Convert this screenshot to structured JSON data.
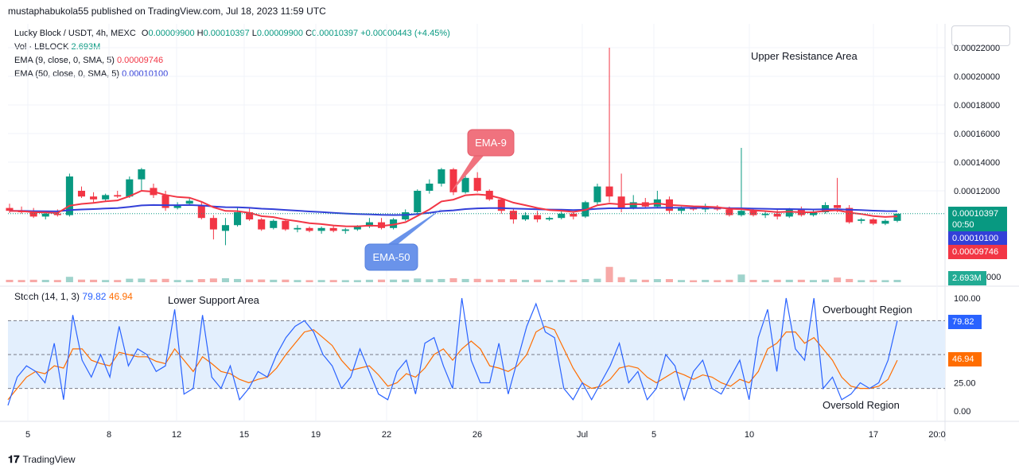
{
  "header": {
    "published": "mustaphabukola55 published on TradingView.com, Jul 18, 2023 11:59 UTC"
  },
  "legend": {
    "symbol": "Lucky Block / USDT, 4h, MEXC",
    "open_label": "O",
    "open": "0.00009900",
    "high_label": "H",
    "high": "0.00010397",
    "low_label": "L",
    "low": "0.00009900",
    "close_label": "C",
    "close": "0.00010397",
    "change": "+0.00000443 (+4.45%)",
    "vol_label": "Vol · LBLOCK",
    "vol_value": "2.693M",
    "ema9_label": "EMA (9, close, 0, SMA, 5)",
    "ema9_value": "0.00009746",
    "ema50_label": "EMA (50, close, 0, SMA, 5)",
    "ema50_value": "0.00010100",
    "stoch_label": "Stoch (14, 1, 3)",
    "stoch_k": "79.82",
    "stoch_d": "46.94"
  },
  "annotations": {
    "upper_resistance": "Upper Resistance Area",
    "lower_support": "Lower Support Area",
    "ema9_callout": "EMA-9",
    "ema50_callout": "EMA-50",
    "overbought": "Overbought Region",
    "oversold": "Oversold Region"
  },
  "price_badges": {
    "last_price": "0.00010397",
    "countdown": "00:50",
    "ema50": "0.00010100",
    "ema9": "0.00009746",
    "volume": "2.693M",
    "stoch_k": "79.82",
    "stoch_d": "46.94"
  },
  "footer": {
    "brand": "TradingView"
  },
  "colors": {
    "up": "#089981",
    "down": "#f23645",
    "ema9": "#f23645",
    "ema50": "#3340d8",
    "stoch_k": "#2962ff",
    "stoch_d": "#ff6d00",
    "stoch_band": "#e3effd",
    "vol_up": "#9fd3cc",
    "vol_down": "#f7a9a7"
  },
  "chart_data": [
    {
      "type": "candlestick",
      "title": "Lucky Block / USDT, 4h, MEXC",
      "x_tick_labels": [
        "5",
        "8",
        "12",
        "15",
        "19",
        "22",
        "26",
        "Jul",
        "5",
        "10",
        "17",
        "20:0"
      ],
      "y_tick_labels": [
        "0.00022000",
        "0.00020000",
        "0.00018000",
        "0.00016000",
        "0.00014000",
        "0.00012000"
      ],
      "ylim": [
        8e-05,
        0.000225
      ],
      "series_ohlc": [
        {
          "o": 0.000108,
          "h": 0.000111,
          "l": 0.0001045,
          "c": 0.000106
        },
        {
          "o": 0.000106,
          "h": 0.000109,
          "l": 0.000104,
          "c": 0.000105
        },
        {
          "o": 0.000105,
          "h": 0.000108,
          "l": 0.000101,
          "c": 0.000102
        },
        {
          "o": 0.000102,
          "h": 0.000106,
          "l": 0.0001,
          "c": 0.000104
        },
        {
          "o": 0.000104,
          "h": 0.000107,
          "l": 0.000102,
          "c": 0.000103
        },
        {
          "o": 0.000103,
          "h": 0.000132,
          "l": 0.000102,
          "c": 0.00013
        },
        {
          "o": 0.00012,
          "h": 0.000123,
          "l": 0.000115,
          "c": 0.000116
        },
        {
          "o": 0.000116,
          "h": 0.000119,
          "l": 0.000112,
          "c": 0.000114
        },
        {
          "o": 0.000114,
          "h": 0.000118,
          "l": 0.000113,
          "c": 0.000117
        },
        {
          "o": 0.000117,
          "h": 0.00012,
          "l": 0.000115,
          "c": 0.000116
        },
        {
          "o": 0.000116,
          "h": 0.00013,
          "l": 0.000115,
          "c": 0.000128
        },
        {
          "o": 0.000128,
          "h": 0.000136,
          "l": 0.00012,
          "c": 0.000135
        },
        {
          "o": 0.000122,
          "h": 0.000125,
          "l": 0.000115,
          "c": 0.000117
        },
        {
          "o": 0.000117,
          "h": 0.00012,
          "l": 0.000106,
          "c": 0.000108
        },
        {
          "o": 0.000108,
          "h": 0.000112,
          "l": 0.000107,
          "c": 0.00011
        },
        {
          "o": 0.000111,
          "h": 0.000115,
          "l": 0.00011,
          "c": 0.000113
        },
        {
          "o": 0.00011,
          "h": 0.000112,
          "l": 0.0001,
          "c": 0.000101
        },
        {
          "o": 0.000101,
          "h": 0.000103,
          "l": 8.6e-05,
          "c": 9.3e-05
        },
        {
          "o": 9.2e-05,
          "h": 0.000101,
          "l": 8.2e-05,
          "c": 9.6e-05
        },
        {
          "o": 9.6e-05,
          "h": 0.000108,
          "l": 9.5e-05,
          "c": 0.000105
        },
        {
          "o": 0.000105,
          "h": 0.000108,
          "l": 9.9e-05,
          "c": 0.0001
        },
        {
          "o": 0.0001,
          "h": 0.000101,
          "l": 9.2e-05,
          "c": 9.3e-05
        },
        {
          "o": 9.4e-05,
          "h": 0.0001,
          "l": 9.3e-05,
          "c": 9.9e-05
        },
        {
          "o": 9.9e-05,
          "h": 0.0001,
          "l": 9.2e-05,
          "c": 9.3e-05
        },
        {
          "o": 9.3e-05,
          "h": 9.6e-05,
          "l": 9.1e-05,
          "c": 9.4e-05
        },
        {
          "o": 9.4e-05,
          "h": 9.5e-05,
          "l": 9.1e-05,
          "c": 9.2e-05
        },
        {
          "o": 9.2e-05,
          "h": 9.5e-05,
          "l": 9e-05,
          "c": 9.4e-05
        },
        {
          "o": 9.4e-05,
          "h": 9.6e-05,
          "l": 9.1e-05,
          "c": 9.2e-05
        },
        {
          "o": 9.2e-05,
          "h": 9.4e-05,
          "l": 9e-05,
          "c": 9.3e-05
        },
        {
          "o": 9.3e-05,
          "h": 9.6e-05,
          "l": 9.2e-05,
          "c": 9.5e-05
        },
        {
          "o": 9.5e-05,
          "h": 0.000101,
          "l": 9.4e-05,
          "c": 9.8e-05
        },
        {
          "o": 9.8e-05,
          "h": 0.000101,
          "l": 9.3e-05,
          "c": 9.4e-05
        },
        {
          "o": 9.4e-05,
          "h": 0.000101,
          "l": 9.3e-05,
          "c": 0.0001
        },
        {
          "o": 0.0001,
          "h": 0.000107,
          "l": 9.9e-05,
          "c": 0.000105
        },
        {
          "o": 0.000105,
          "h": 0.000121,
          "l": 0.000104,
          "c": 0.00012
        },
        {
          "o": 0.00012,
          "h": 0.000128,
          "l": 0.000118,
          "c": 0.000125
        },
        {
          "o": 0.000125,
          "h": 0.000136,
          "l": 0.000123,
          "c": 0.000135
        },
        {
          "o": 0.000135,
          "h": 0.000136,
          "l": 0.000117,
          "c": 0.000119
        },
        {
          "o": 0.000119,
          "h": 0.000131,
          "l": 0.000118,
          "c": 0.000129
        },
        {
          "o": 0.000129,
          "h": 0.000133,
          "l": 0.000119,
          "c": 0.00012
        },
        {
          "o": 0.00012,
          "h": 0.000121,
          "l": 0.000113,
          "c": 0.000114
        },
        {
          "o": 0.000114,
          "h": 0.000115,
          "l": 0.000104,
          "c": 0.000106
        },
        {
          "o": 0.000106,
          "h": 0.000108,
          "l": 9.7e-05,
          "c": 0.0001
        },
        {
          "o": 0.0001,
          "h": 0.000105,
          "l": 9.9e-05,
          "c": 0.000103
        },
        {
          "o": 0.000103,
          "h": 0.000106,
          "l": 9.8e-05,
          "c": 0.0001
        },
        {
          "o": 0.0001,
          "h": 0.000102,
          "l": 9.9e-05,
          "c": 0.000101
        },
        {
          "o": 0.000101,
          "h": 0.000106,
          "l": 0.0001,
          "c": 0.000104
        },
        {
          "o": 0.000104,
          "h": 0.000105,
          "l": 0.0001,
          "c": 0.000102
        },
        {
          "o": 0.000102,
          "h": 0.000113,
          "l": 0.000101,
          "c": 0.000112
        },
        {
          "o": 0.000112,
          "h": 0.000125,
          "l": 0.00011,
          "c": 0.000123
        },
        {
          "o": 0.000123,
          "h": 0.00022,
          "l": 0.000112,
          "c": 0.000116
        },
        {
          "o": 0.000116,
          "h": 0.000132,
          "l": 0.000105,
          "c": 0.000108
        },
        {
          "o": 0.000108,
          "h": 0.000117,
          "l": 0.000107,
          "c": 0.000112
        },
        {
          "o": 0.000112,
          "h": 0.000115,
          "l": 0.000108,
          "c": 0.000109
        },
        {
          "o": 0.000109,
          "h": 0.00012,
          "l": 0.000108,
          "c": 0.000114
        },
        {
          "o": 0.000114,
          "h": 0.000116,
          "l": 0.000104,
          "c": 0.000106
        },
        {
          "o": 0.000106,
          "h": 0.000109,
          "l": 0.000104,
          "c": 0.000108
        },
        {
          "o": 0.000108,
          "h": 0.000109,
          "l": 0.000106,
          "c": 0.000107
        },
        {
          "o": 0.000107,
          "h": 0.000111,
          "l": 0.000105,
          "c": 0.000108
        },
        {
          "o": 0.000108,
          "h": 0.00011,
          "l": 0.000106,
          "c": 0.000107
        },
        {
          "o": 0.000107,
          "h": 0.000109,
          "l": 0.000102,
          "c": 0.000103
        },
        {
          "o": 0.000103,
          "h": 0.00015,
          "l": 0.000102,
          "c": 0.000106
        },
        {
          "o": 0.000106,
          "h": 0.000108,
          "l": 0.000102,
          "c": 0.000103
        },
        {
          "o": 0.000103,
          "h": 0.000106,
          "l": 0.000101,
          "c": 0.000104
        },
        {
          "o": 0.000104,
          "h": 0.000107,
          "l": 0.0001,
          "c": 0.000102
        },
        {
          "o": 0.000102,
          "h": 0.000108,
          "l": 0.000101,
          "c": 0.000107
        },
        {
          "o": 0.000107,
          "h": 0.000109,
          "l": 0.000102,
          "c": 0.000103
        },
        {
          "o": 0.000103,
          "h": 0.000107,
          "l": 0.000102,
          "c": 0.000105
        },
        {
          "o": 0.000105,
          "h": 0.000112,
          "l": 0.000104,
          "c": 0.00011
        },
        {
          "o": 0.00011,
          "h": 0.000129,
          "l": 0.000105,
          "c": 0.000108
        },
        {
          "o": 0.000108,
          "h": 0.00011,
          "l": 9.7e-05,
          "c": 9.8e-05
        },
        {
          "o": 9.9e-05,
          "h": 0.000101,
          "l": 9.7e-05,
          "c": 0.0001
        },
        {
          "o": 0.0001,
          "h": 0.000101,
          "l": 9.6e-05,
          "c": 9.7e-05
        },
        {
          "o": 9.7e-05,
          "h": 0.0001,
          "l": 9.6e-05,
          "c": 9.9e-05
        },
        {
          "o": 9.9e-05,
          "h": 0.000104,
          "l": 9.8e-05,
          "c": 0.000104
        }
      ]
    },
    {
      "type": "area",
      "title": "Vol · LBLOCK",
      "last_value": "2.693M"
    },
    {
      "type": "line",
      "title": "Stoch (14, 1, 3)",
      "y_tick_labels": [
        "100.00",
        "25.00",
        "0.00"
      ],
      "ylim": [
        0,
        100
      ],
      "levels": [
        80,
        50,
        20
      ],
      "series": [
        {
          "name": "79.82",
          "values": [
            5,
            30,
            40,
            35,
            25,
            60,
            10,
            85,
            45,
            30,
            50,
            30,
            75,
            40,
            55,
            50,
            35,
            40,
            90,
            15,
            20,
            85,
            30,
            20,
            40,
            10,
            20,
            35,
            30,
            50,
            65,
            75,
            80,
            70,
            50,
            40,
            20,
            30,
            55,
            35,
            15,
            10,
            35,
            45,
            15,
            60,
            65,
            40,
            20,
            100,
            45,
            25,
            25,
            60,
            15,
            45,
            75,
            95,
            70,
            65,
            20,
            10,
            25,
            10,
            25,
            40,
            60,
            25,
            35,
            10,
            20,
            50,
            40,
            10,
            35,
            45,
            20,
            15,
            30,
            45,
            10,
            65,
            90,
            35,
            100,
            55,
            45,
            100,
            20,
            30,
            10,
            15,
            25,
            20,
            25,
            45,
            80
          ]
        },
        {
          "name": "46.94",
          "values": [
            10,
            20,
            30,
            35,
            33,
            40,
            38,
            55,
            55,
            45,
            42,
            40,
            52,
            50,
            48,
            48,
            44,
            42,
            55,
            45,
            35,
            48,
            42,
            35,
            33,
            28,
            25,
            28,
            30,
            38,
            50,
            60,
            70,
            72,
            65,
            58,
            45,
            36,
            38,
            40,
            32,
            22,
            25,
            33,
            30,
            38,
            50,
            55,
            45,
            55,
            62,
            55,
            40,
            38,
            35,
            40,
            50,
            70,
            75,
            72,
            55,
            38,
            25,
            20,
            22,
            28,
            38,
            40,
            38,
            30,
            25,
            30,
            35,
            32,
            28,
            32,
            30,
            25,
            22,
            28,
            25,
            35,
            55,
            60,
            70,
            70,
            60,
            65,
            55,
            45,
            30,
            22,
            20,
            20,
            22,
            28,
            45
          ]
        }
      ]
    }
  ]
}
